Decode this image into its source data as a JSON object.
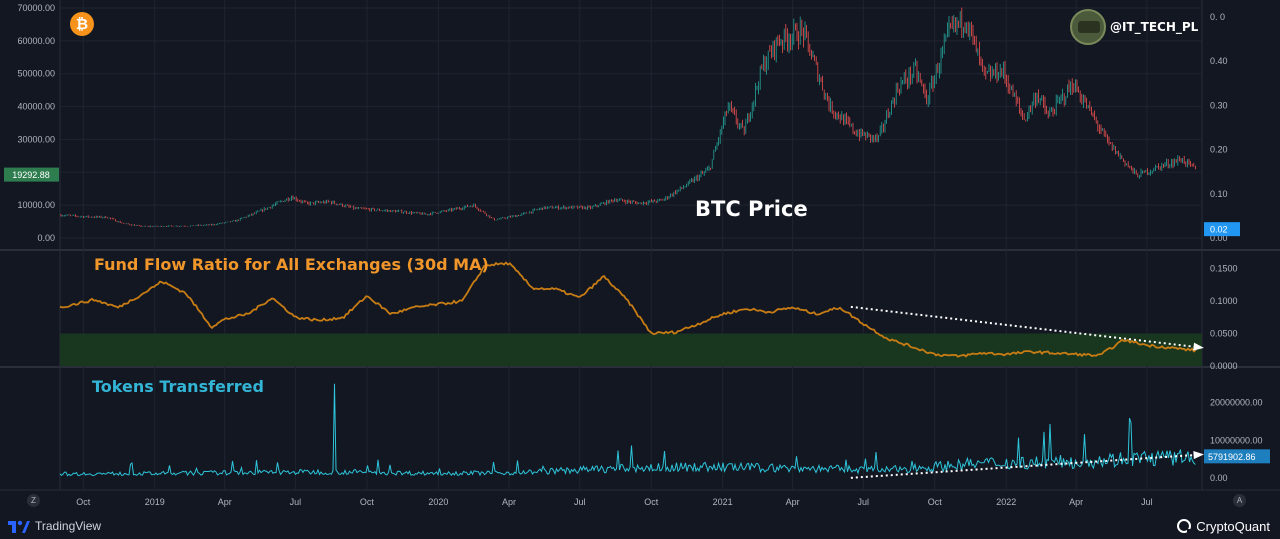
{
  "branding": {
    "left_logo": "TradingView",
    "right_logo": "CryptoQuant",
    "twitter_handle": "@IT_TECH_PL",
    "btc_symbol": "₿"
  },
  "colors": {
    "background": "#131722",
    "grid": "#1f2430",
    "price_up": "#26a69a",
    "price_down": "#ef5350",
    "fund_flow": "#c77c14",
    "fund_flow_title": "#f0962a",
    "tokens": "#2ec4d9",
    "tokens_title": "#33b5d6",
    "zone": "#1b3a1f",
    "last_price_bg": "#2e7d4f",
    "tokens_value_bg": "#1e7fbf",
    "fund_value_bg": "#2196f3"
  },
  "axis_buttons": {
    "left": "Z",
    "right": "A"
  },
  "chart_data": [
    {
      "type": "line",
      "title": "BTC Price",
      "ylim": [
        0,
        70000
      ],
      "yticks_left": [
        "70000.00",
        "60000.00",
        "50000.00",
        "40000.00",
        "30000.00",
        "20000.00",
        "10000.00",
        "0.00"
      ],
      "ytick_values_left": [
        70000,
        60000,
        50000,
        40000,
        30000,
        20000,
        10000,
        0
      ],
      "yticks_right": [
        "0. 0",
        "0.40",
        "0.30",
        "0.20",
        "0.10",
        "0.00"
      ],
      "ytick_values_right": [
        0.5,
        0.4,
        0.3,
        0.2,
        0.1,
        0.0
      ],
      "ylim_right": [
        0,
        0.52
      ],
      "last_price_label": "19292.88",
      "last_price_value": 19292.88,
      "right_value_label": "0.02",
      "right_value": 0.02,
      "series": [
        {
          "x": [
            "2018-09-01",
            "2018-10-01",
            "2018-11-01",
            "2018-11-20",
            "2018-12-15",
            "2019-01-15",
            "2019-02-15",
            "2019-03-15",
            "2019-04-15",
            "2019-05-15",
            "2019-06-26",
            "2019-07-15",
            "2019-08-15",
            "2019-09-15",
            "2019-10-15",
            "2019-11-15",
            "2019-12-15",
            "2020-01-15",
            "2020-02-15",
            "2020-03-13",
            "2020-04-15",
            "2020-05-15",
            "2020-06-15",
            "2020-07-15",
            "2020-08-15",
            "2020-09-15",
            "2020-10-15",
            "2020-11-15",
            "2020-12-15",
            "2021-01-08",
            "2021-01-28",
            "2021-02-21",
            "2021-03-13",
            "2021-04-14",
            "2021-05-19",
            "2021-06-22",
            "2021-07-20",
            "2021-08-15",
            "2021-09-06",
            "2021-09-21",
            "2021-10-20",
            "2021-11-10",
            "2021-12-04",
            "2021-12-27",
            "2022-01-24",
            "2022-02-10",
            "2022-02-24",
            "2022-03-28",
            "2022-04-15",
            "2022-05-12",
            "2022-06-18",
            "2022-07-20",
            "2022-08-15",
            "2022-09-10"
          ],
          "values": [
            7000,
            6500,
            6300,
            4500,
            3500,
            3600,
            3700,
            4000,
            5200,
            8000,
            12500,
            10500,
            11000,
            9000,
            8500,
            8000,
            7200,
            8400,
            10000,
            5500,
            7000,
            9200,
            9300,
            9200,
            11700,
            10600,
            11500,
            16000,
            21000,
            40000,
            32000,
            52000,
            60000,
            63000,
            40000,
            32000,
            30000,
            46000,
            51000,
            42000,
            63000,
            67000,
            49000,
            51000,
            36000,
            44000,
            37000,
            47000,
            40000,
            29000,
            19000,
            22000,
            24000,
            19292
          ]
        }
      ]
    },
    {
      "type": "area",
      "title": "Fund Flow Ratio for All Exchanges (30d MA)",
      "ylim": [
        0,
        0.16
      ],
      "yticks": [
        "0.1500",
        "0.1000",
        "0.0500",
        "0.0000"
      ],
      "ytick_values": [
        0.15,
        0.1,
        0.05,
        0.0
      ],
      "zone_range": [
        0,
        0.05
      ],
      "series": [
        {
          "x": [
            "2018-09-01",
            "2018-10-15",
            "2018-11-15",
            "2018-12-15",
            "2019-01-10",
            "2019-02-10",
            "2019-03-15",
            "2019-04-01",
            "2019-05-01",
            "2019-06-01",
            "2019-07-01",
            "2019-08-01",
            "2019-09-01",
            "2019-10-01",
            "2019-11-01",
            "2019-12-01",
            "2020-01-01",
            "2020-02-01",
            "2020-03-01",
            "2020-04-01",
            "2020-05-01",
            "2020-06-01",
            "2020-07-01",
            "2020-08-01",
            "2020-09-01",
            "2020-10-01",
            "2020-11-01",
            "2020-12-01",
            "2021-01-01",
            "2021-02-01",
            "2021-03-01",
            "2021-04-01",
            "2021-05-01",
            "2021-06-01",
            "2021-07-01",
            "2021-08-01",
            "2021-09-01",
            "2021-10-01",
            "2021-11-01",
            "2021-12-01",
            "2022-01-01",
            "2022-02-01",
            "2022-03-01",
            "2022-04-01",
            "2022-05-01",
            "2022-06-01",
            "2022-07-01",
            "2022-08-01",
            "2022-09-10"
          ],
          "values": [
            0.09,
            0.102,
            0.09,
            0.11,
            0.13,
            0.112,
            0.06,
            0.072,
            0.08,
            0.105,
            0.075,
            0.07,
            0.075,
            0.108,
            0.08,
            0.09,
            0.095,
            0.1,
            0.155,
            0.158,
            0.12,
            0.118,
            0.105,
            0.138,
            0.1,
            0.05,
            0.052,
            0.065,
            0.08,
            0.088,
            0.083,
            0.09,
            0.08,
            0.09,
            0.065,
            0.042,
            0.03,
            0.018,
            0.015,
            0.02,
            0.018,
            0.022,
            0.02,
            0.018,
            0.016,
            0.04,
            0.032,
            0.028,
            0.023
          ]
        }
      ]
    },
    {
      "type": "line",
      "title": "Tokens Transferred",
      "ylim": [
        -1000000,
        26000000
      ],
      "yticks": [
        "20000000.00",
        "10000000.00",
        "0.00"
      ],
      "ytick_values": [
        20000000,
        10000000,
        0
      ],
      "last_value_label": "5791902.86",
      "last_value": 5791902.86,
      "spike": {
        "x": "2019-08-20",
        "value": 25000000
      },
      "series": [
        {
          "x": [
            "2018-09-01",
            "2019-01-01",
            "2019-05-01",
            "2019-08-20",
            "2019-12-01",
            "2020-04-01",
            "2020-08-01",
            "2020-12-01",
            "2021-04-01",
            "2021-08-01",
            "2021-12-01",
            "2022-04-01",
            "2022-06-10",
            "2022-09-10"
          ],
          "values": [
            1200000,
            1300000,
            1600000,
            1800000,
            1400000,
            1500000,
            2600000,
            3200000,
            2800000,
            2300000,
            4200000,
            4600000,
            5500000,
            5791902.86
          ]
        }
      ]
    }
  ],
  "x_axis": {
    "labels": [
      "Oct",
      "2019",
      "Apr",
      "Jul",
      "Oct",
      "2020",
      "Apr",
      "Jul",
      "Oct",
      "2021",
      "Apr",
      "Jul",
      "Oct",
      "2022",
      "Apr",
      "Jul"
    ],
    "dates": [
      "2018-10-01",
      "2019-01-01",
      "2019-04-01",
      "2019-07-01",
      "2019-10-01",
      "2020-01-01",
      "2020-04-01",
      "2020-07-01",
      "2020-10-01",
      "2021-01-01",
      "2021-04-01",
      "2021-07-01",
      "2021-10-01",
      "2022-01-01",
      "2022-04-01",
      "2022-07-01"
    ],
    "range": [
      "2018-09-01",
      "2022-09-10"
    ]
  },
  "annotations": {
    "fund_flow_trend": {
      "from": "2021-06-15",
      "to": "2022-09-10",
      "from_value": 0.091,
      "to_value": 0.029,
      "style": "dotted-arrow"
    },
    "tokens_trend": {
      "from": "2021-06-15",
      "to": "2022-09-10",
      "from_value": 100000,
      "to_value": 6200000,
      "style": "dotted-arrow"
    }
  }
}
